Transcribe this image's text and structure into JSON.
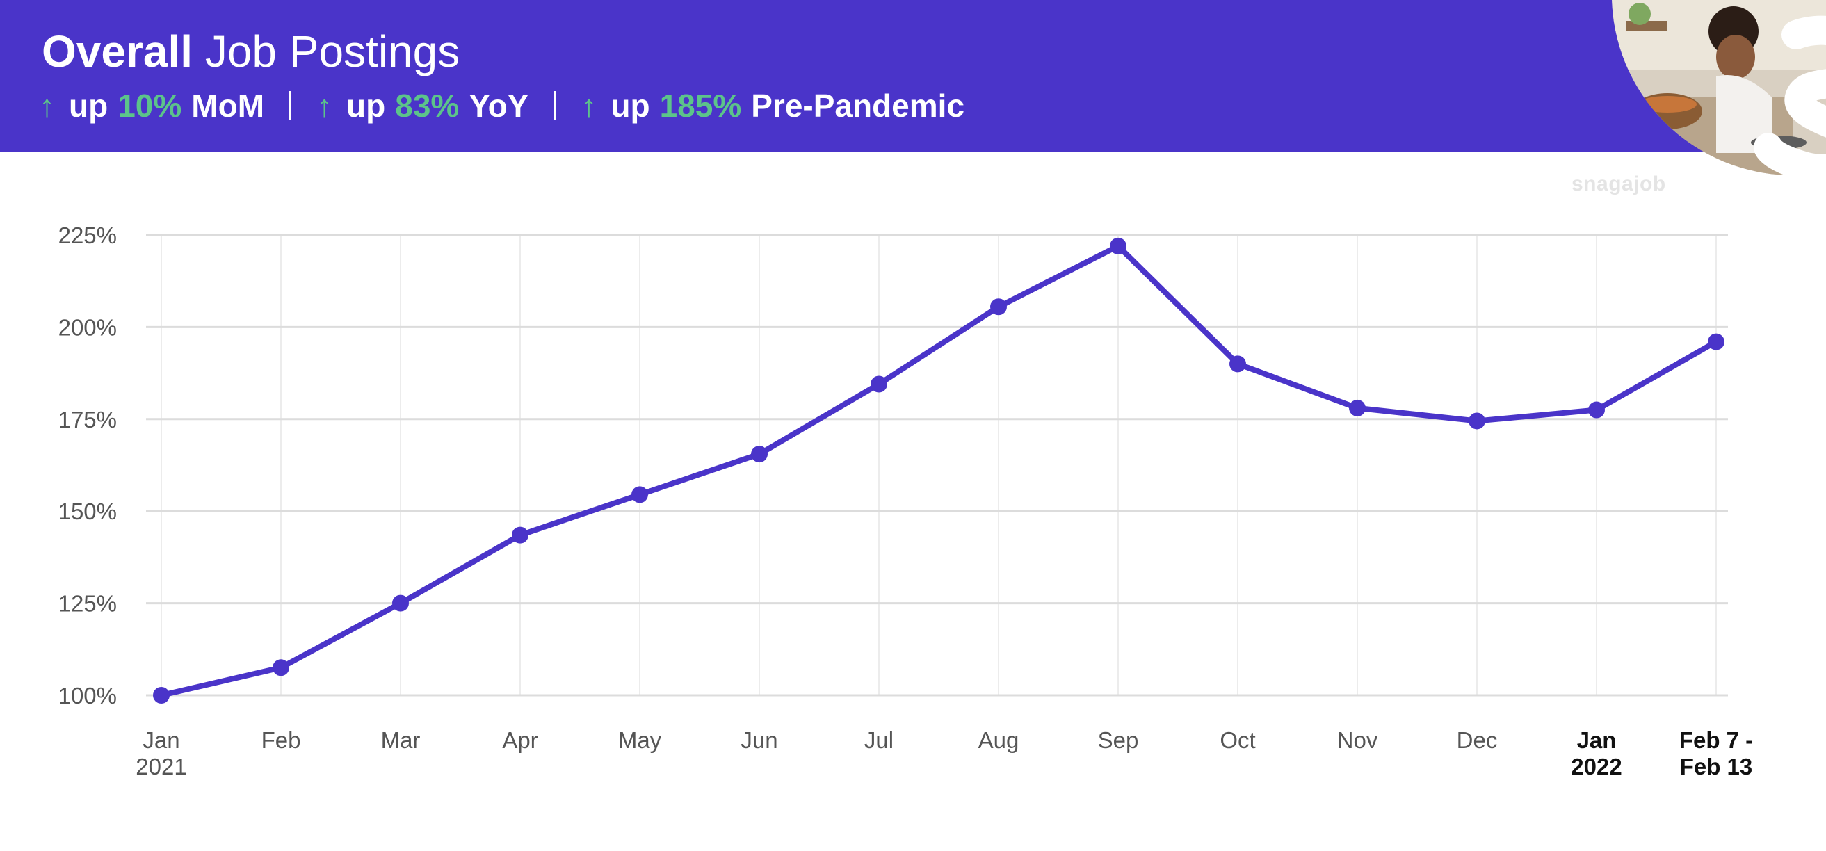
{
  "header": {
    "title_bold": "Overall",
    "title_rest": "Job Postings",
    "stats": [
      {
        "arrow": "↑",
        "prefix": "up",
        "value": "10%",
        "label": "MoM"
      },
      {
        "arrow": "↑",
        "prefix": "up",
        "value": "83%",
        "label": "YoY"
      },
      {
        "arrow": "↑",
        "prefix": "up",
        "value": "185%",
        "label": "Pre-Pandemic"
      }
    ]
  },
  "brand": {
    "watermark": "snagajob",
    "logo_letter": "S"
  },
  "colors": {
    "banner": "#4a34c9",
    "line": "#4a34c9",
    "accent_green": "#5cc48a"
  },
  "chart_data": {
    "type": "line",
    "title": "Overall Job Postings",
    "categories": [
      [
        "Jan",
        "2021"
      ],
      [
        "Feb"
      ],
      [
        "Mar"
      ],
      [
        "Apr"
      ],
      [
        "May"
      ],
      [
        "Jun"
      ],
      [
        "Jul"
      ],
      [
        "Aug"
      ],
      [
        "Sep"
      ],
      [
        "Oct"
      ],
      [
        "Nov"
      ],
      [
        "Dec"
      ],
      [
        "Jan",
        "2022"
      ],
      [
        "Feb 7 -",
        "Feb 13"
      ]
    ],
    "values": [
      100,
      107.5,
      125,
      143.5,
      154.5,
      165.5,
      184.5,
      205.5,
      222,
      190,
      178,
      174.5,
      177.5,
      196
    ],
    "ylim": [
      100,
      225
    ],
    "yticks": [
      100,
      125,
      150,
      175,
      200,
      225
    ],
    "ytick_labels": [
      "100%",
      "125%",
      "150%",
      "175%",
      "200%",
      "225%"
    ],
    "grid": true,
    "xlabel": "",
    "ylabel": ""
  }
}
